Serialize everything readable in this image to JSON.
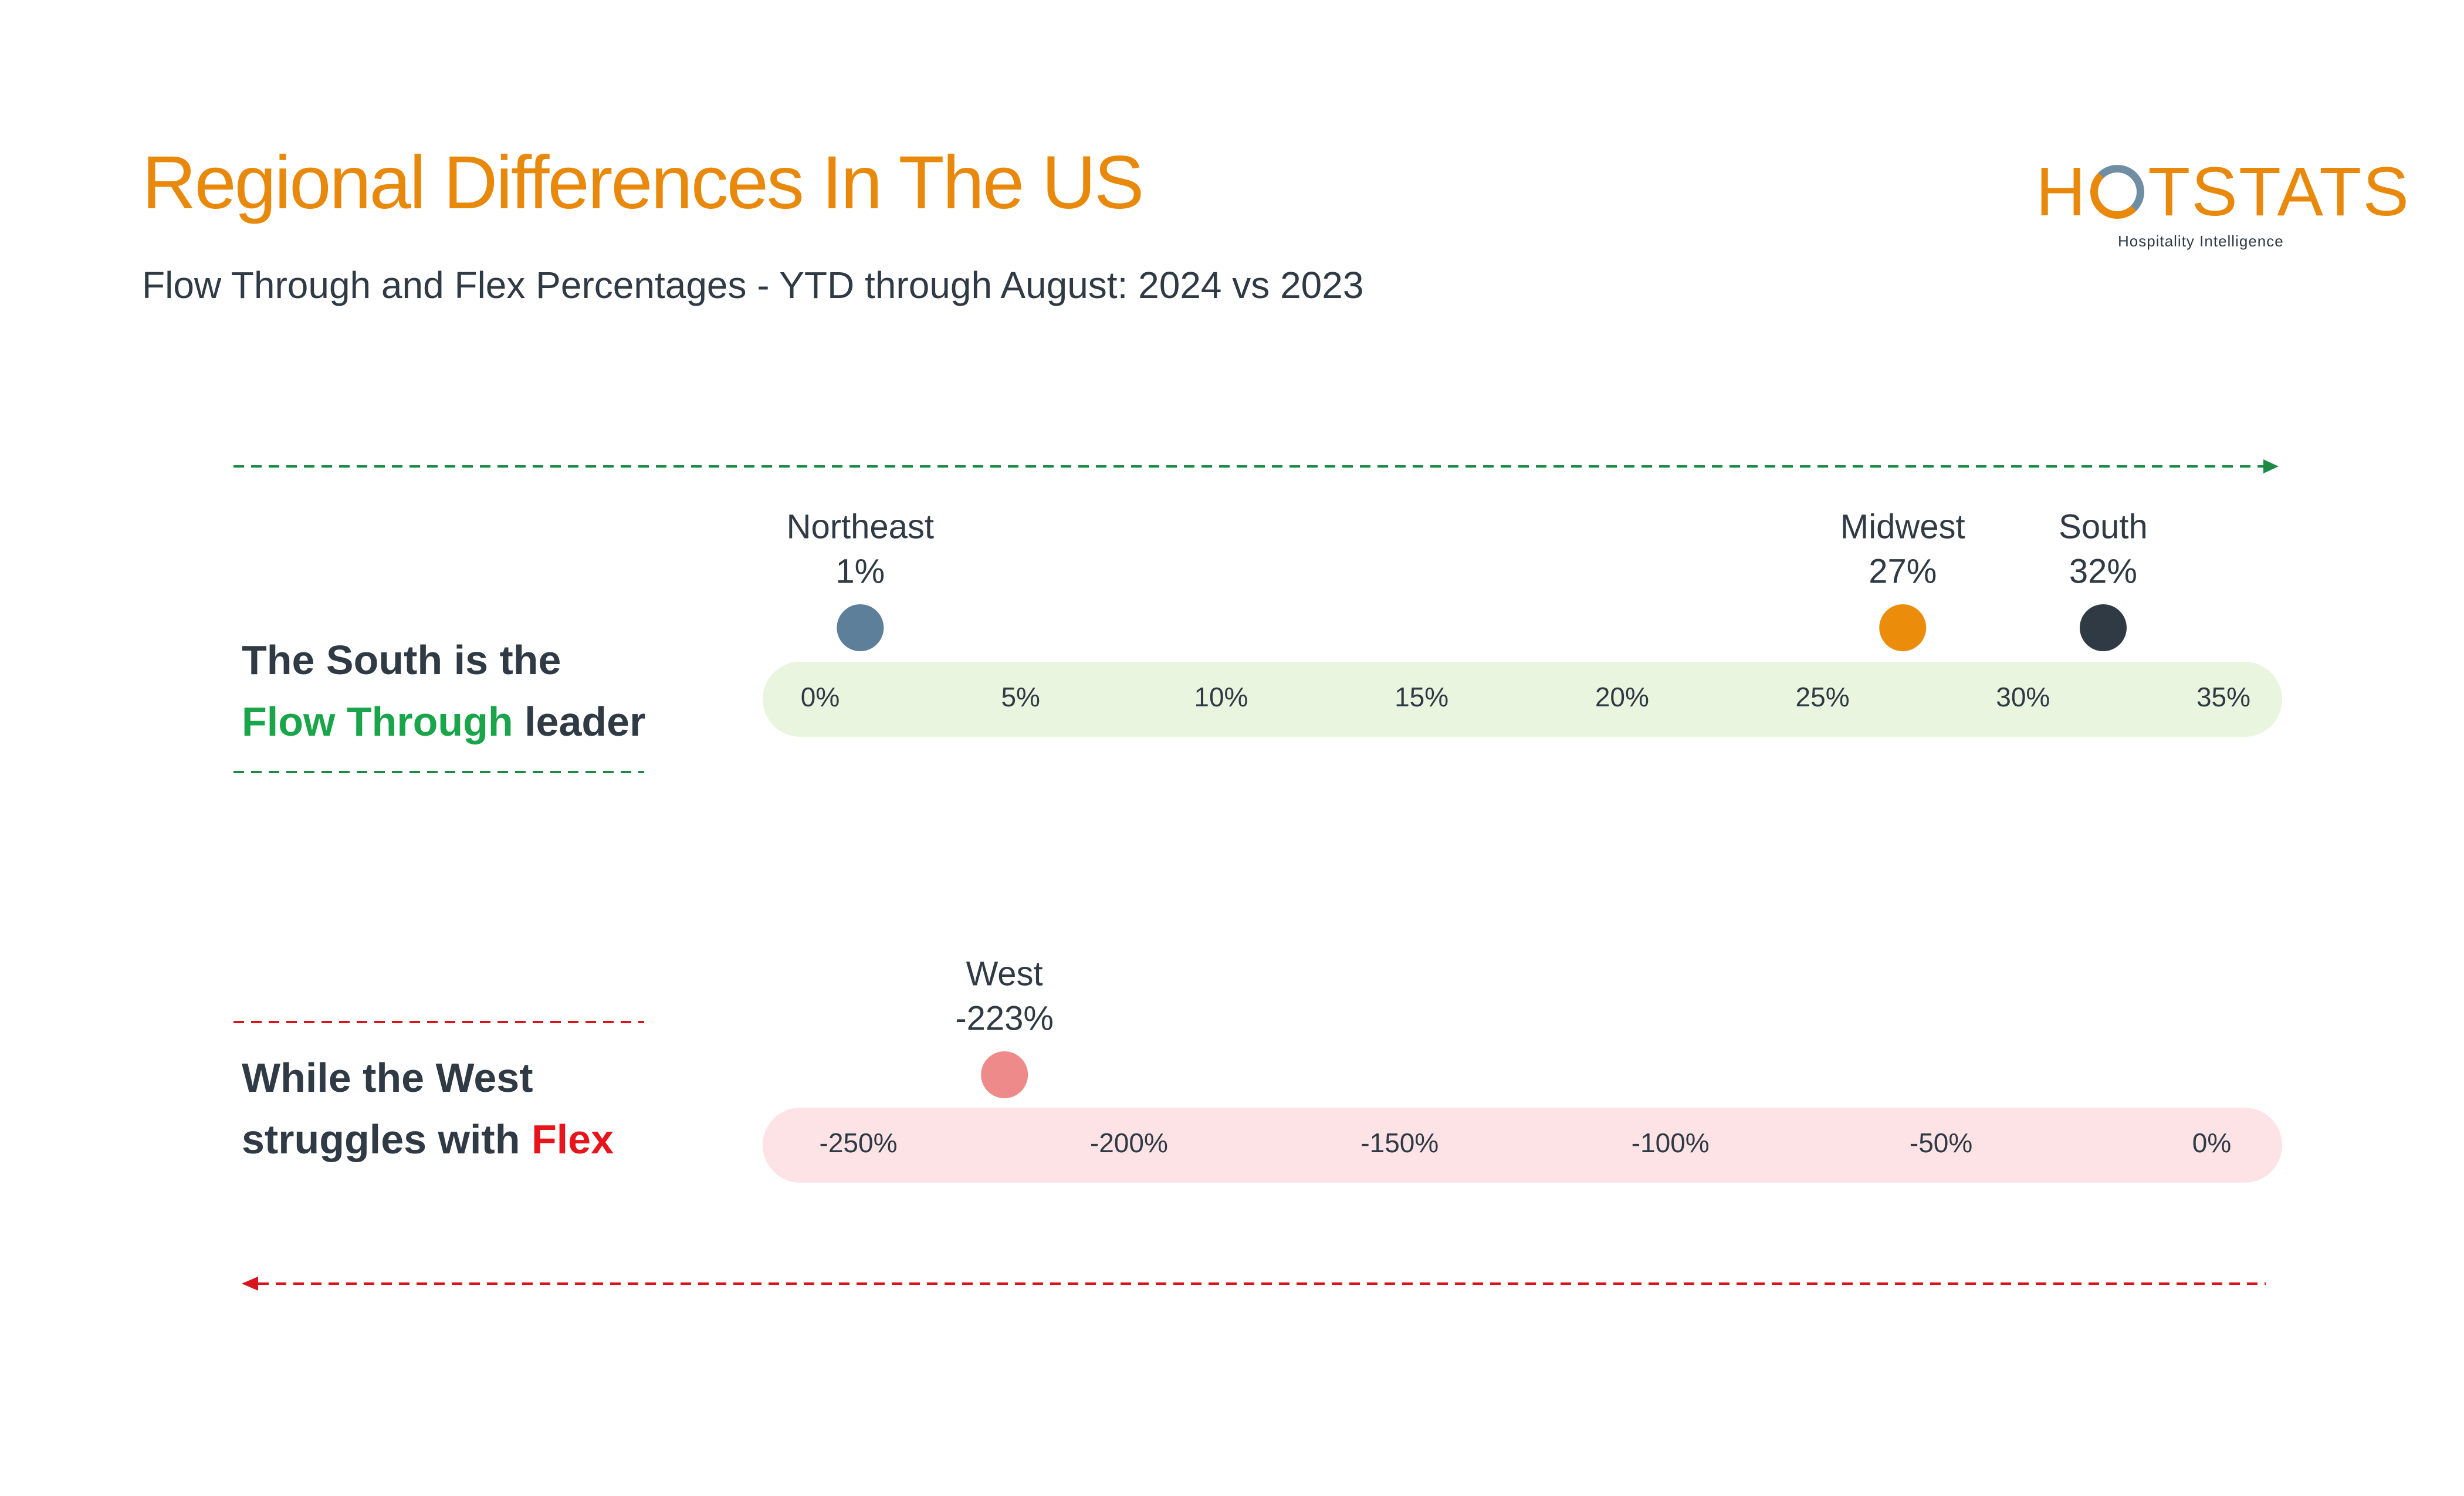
{
  "header": {
    "title": "Regional Differences In The US",
    "subtitle": "Flow Through and Flex Percentages - YTD through August: 2024 vs 2023"
  },
  "logo": {
    "wordmark_left": "H",
    "wordmark_right": "TSTATS",
    "tagline": "Hospitality Intelligence",
    "colors": {
      "brand": "#e8890c",
      "accent": "#6f8ea3"
    }
  },
  "headlines": {
    "flow_through": {
      "line1": "The South is the",
      "highlight": "Flow Through",
      "rest": " leader"
    },
    "flex": {
      "line1": "While the West",
      "line2_prefix": "struggles with ",
      "highlight": "Flex"
    }
  },
  "colors": {
    "green_arrow": "#1a8a45",
    "red_arrow": "#d9141c",
    "flow_band": "#eaf5df",
    "flex_band": "#fde3e5"
  },
  "chart_data": [
    {
      "type": "scatter",
      "title": "",
      "xlim": [
        0,
        35
      ],
      "ticks": [
        "0%",
        "5%",
        "10%",
        "15%",
        "20%",
        "25%",
        "30%",
        "35%"
      ],
      "points": [
        {
          "name": "Northeast",
          "value": 1,
          "label": "1%",
          "color": "#5e7f99"
        },
        {
          "name": "Midwest",
          "value": 27,
          "label": "27%",
          "color": "#ec8c0b"
        },
        {
          "name": "South",
          "value": 32,
          "label": "32%",
          "color": "#2f3a44"
        }
      ]
    },
    {
      "type": "scatter",
      "title": "",
      "xlim": [
        -250,
        0
      ],
      "ticks": [
        "-250%",
        "-200%",
        "-150%",
        "-100%",
        "-50%",
        "0%"
      ],
      "points": [
        {
          "name": "West",
          "value": -223,
          "label": "-223%",
          "color": "#ef8a8a"
        }
      ]
    }
  ]
}
